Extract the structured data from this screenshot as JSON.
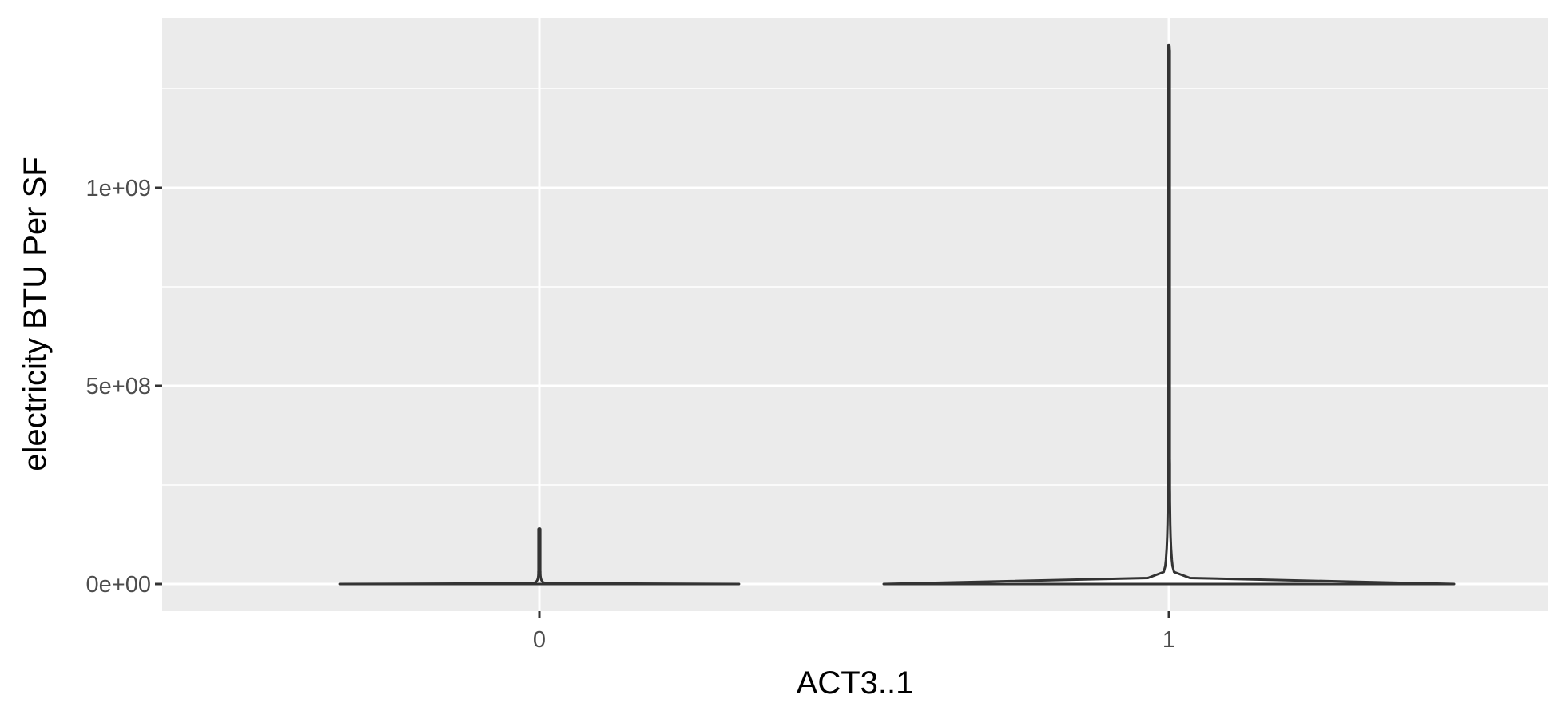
{
  "chart_data": {
    "type": "violin",
    "xlabel": "ACT3..1",
    "ylabel": "electricity BTU Per SF",
    "categories": [
      "0",
      "1"
    ],
    "y_ticks": [
      {
        "value": 0,
        "label": "0e+00"
      },
      {
        "value": 500000000,
        "label": "5e+08"
      },
      {
        "value": 1000000000,
        "label": "1e+09"
      }
    ],
    "ylim": [
      -70000000,
      1430000000
    ],
    "grid": true,
    "series": [
      {
        "category": "0",
        "min": 0,
        "max": 140000000,
        "relative_max_width": 0.7
      },
      {
        "category": "1",
        "min": 0,
        "max": 1360000000,
        "relative_max_width": 1.0
      }
    ],
    "colors": {
      "panel": "#ebebeb",
      "grid": "#ffffff",
      "outline": "#333333",
      "tick_label": "#4d4d4d",
      "title": "#000000"
    }
  }
}
